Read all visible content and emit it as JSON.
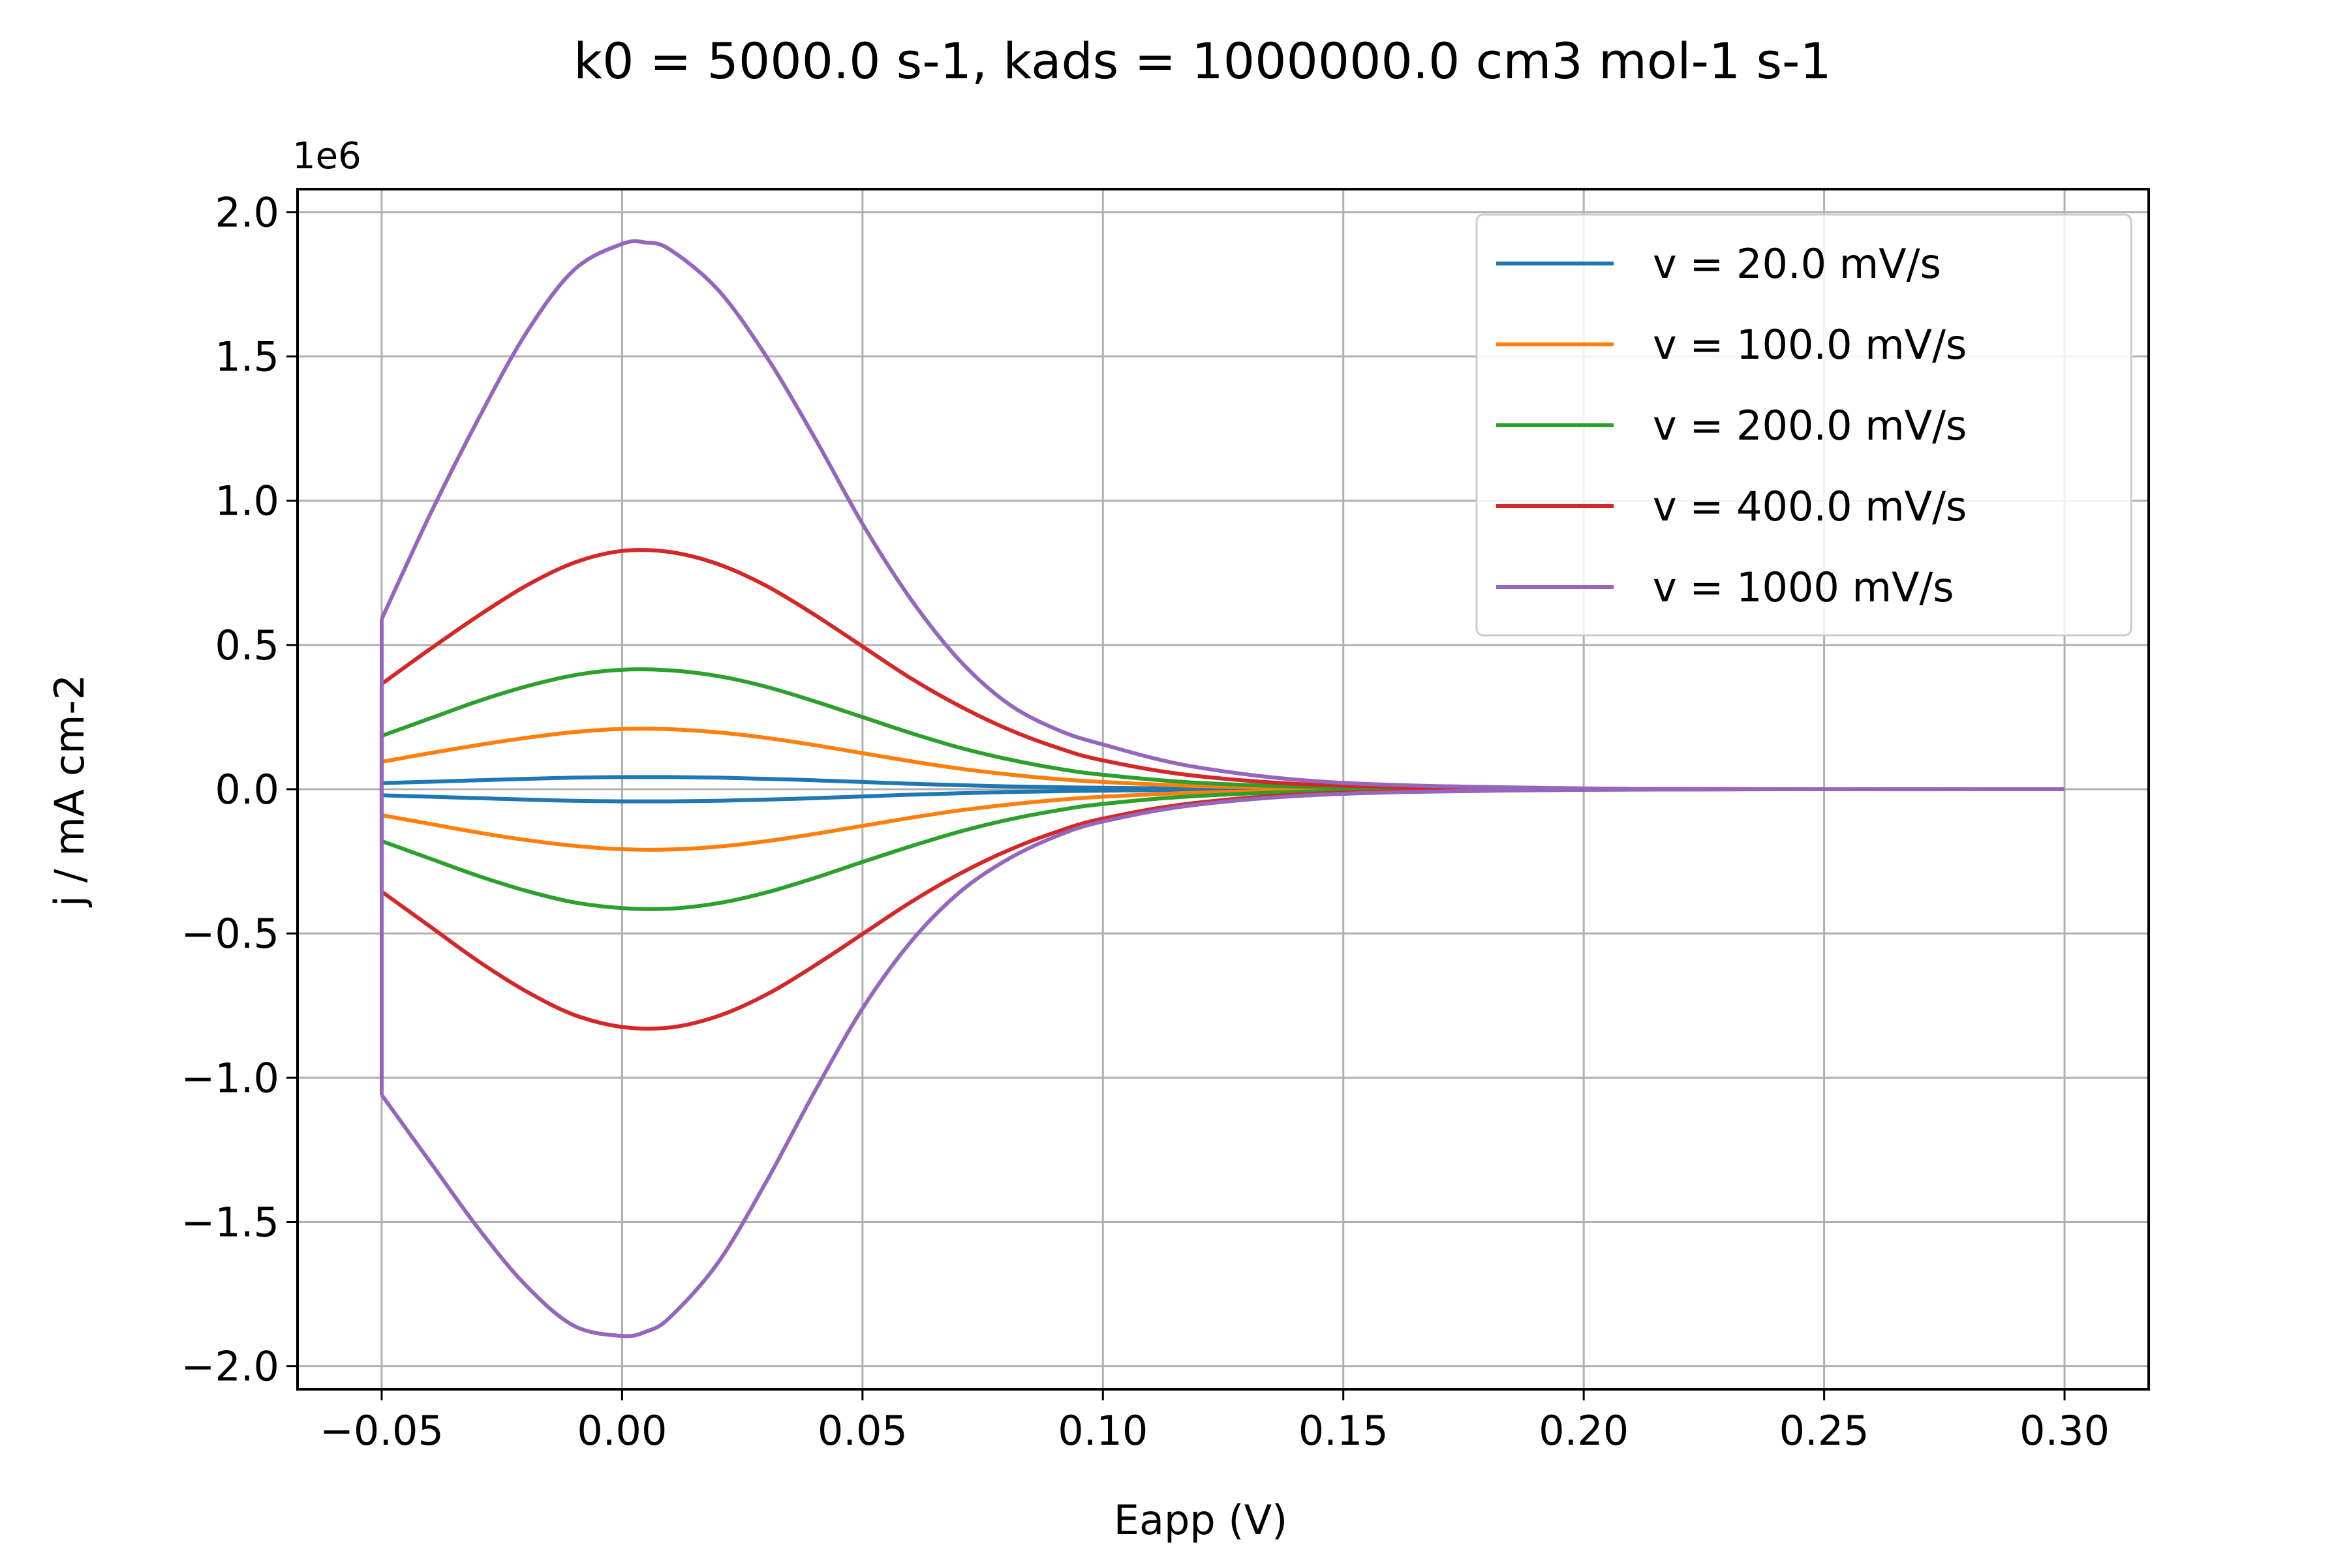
{
  "chart_data": {
    "type": "line",
    "title": "k0 = 5000.0 s-1, kads = 1000000.0 cm3 mol-1 s-1",
    "xlabel": "Eapp (V)",
    "ylabel": "j / mA cm-2",
    "offset_label": "1e6",
    "xlim": [
      -0.0675,
      0.3175
    ],
    "ylim": [
      -2.08,
      2.08
    ],
    "xticks": [
      -0.05,
      0.0,
      0.05,
      0.1,
      0.15,
      0.2,
      0.25,
      0.3
    ],
    "xtick_labels": [
      "−0.05",
      "0.00",
      "0.05",
      "0.10",
      "0.15",
      "0.20",
      "0.25",
      "0.30"
    ],
    "yticks": [
      -2.0,
      -1.5,
      -1.0,
      -0.5,
      0.0,
      0.5,
      1.0,
      1.5,
      2.0
    ],
    "ytick_labels": [
      "−2.0",
      "−1.5",
      "−1.0",
      "−0.5",
      "0.0",
      "0.5",
      "1.0",
      "1.5",
      "2.0"
    ],
    "grid": true,
    "legend_position": "top-right",
    "series": [
      {
        "name": "v = 20.0 mV/s",
        "color": "#1f77b4",
        "x": [
          -0.05,
          -0.04,
          -0.03,
          -0.02,
          -0.01,
          0.0,
          0.01,
          0.02,
          0.03,
          0.04,
          0.05,
          0.06,
          0.07,
          0.08,
          0.09,
          0.1,
          0.12,
          0.15,
          0.2,
          0.25,
          0.3
        ],
        "forward": [
          0.021,
          0.026,
          0.031,
          0.036,
          0.04,
          0.042,
          0.042,
          0.04,
          0.036,
          0.031,
          0.025,
          0.019,
          0.014,
          0.01,
          0.007,
          0.005,
          0.002,
          0.0006,
          0.0001,
          0.0,
          0.0
        ],
        "backward": [
          -0.021,
          -0.026,
          -0.031,
          -0.036,
          -0.04,
          -0.042,
          -0.042,
          -0.04,
          -0.036,
          -0.031,
          -0.025,
          -0.019,
          -0.014,
          -0.01,
          -0.007,
          -0.005,
          -0.002,
          -0.0006,
          -0.0001,
          0.0,
          0.0
        ]
      },
      {
        "name": "v = 100.0 mV/s",
        "color": "#ff7f0e",
        "x": [
          -0.05,
          -0.04,
          -0.03,
          -0.02,
          -0.01,
          0.0,
          0.01,
          0.02,
          0.03,
          0.04,
          0.05,
          0.06,
          0.07,
          0.08,
          0.09,
          0.1,
          0.12,
          0.15,
          0.2,
          0.25,
          0.3
        ],
        "forward": [
          0.095,
          0.125,
          0.153,
          0.178,
          0.198,
          0.209,
          0.208,
          0.197,
          0.178,
          0.153,
          0.125,
          0.097,
          0.072,
          0.052,
          0.036,
          0.025,
          0.011,
          0.003,
          0.0004,
          0.0,
          0.0
        ],
        "backward": [
          -0.09,
          -0.12,
          -0.15,
          -0.176,
          -0.196,
          -0.208,
          -0.209,
          -0.199,
          -0.18,
          -0.155,
          -0.127,
          -0.099,
          -0.074,
          -0.054,
          -0.038,
          -0.026,
          -0.012,
          -0.003,
          -0.0004,
          0.0,
          0.0
        ]
      },
      {
        "name": "v = 200.0 mV/s",
        "color": "#2ca02c",
        "x": [
          -0.05,
          -0.04,
          -0.03,
          -0.02,
          -0.01,
          0.0,
          0.01,
          0.02,
          0.03,
          0.04,
          0.05,
          0.06,
          0.07,
          0.08,
          0.09,
          0.1,
          0.12,
          0.15,
          0.2,
          0.25,
          0.3
        ],
        "forward": [
          0.185,
          0.245,
          0.305,
          0.356,
          0.395,
          0.414,
          0.412,
          0.392,
          0.355,
          0.305,
          0.25,
          0.195,
          0.145,
          0.105,
          0.073,
          0.05,
          0.022,
          0.006,
          0.0008,
          0.0,
          0.0
        ],
        "backward": [
          -0.18,
          -0.24,
          -0.3,
          -0.352,
          -0.392,
          -0.412,
          -0.414,
          -0.395,
          -0.358,
          -0.308,
          -0.252,
          -0.198,
          -0.148,
          -0.107,
          -0.075,
          -0.051,
          -0.023,
          -0.006,
          -0.0008,
          0.0,
          0.0
        ]
      },
      {
        "name": "v = 400.0 mV/s",
        "color": "#d62728",
        "x": [
          -0.05,
          -0.04,
          -0.03,
          -0.02,
          -0.01,
          0.0,
          0.01,
          0.02,
          0.03,
          0.04,
          0.05,
          0.06,
          0.07,
          0.08,
          0.09,
          0.1,
          0.12,
          0.15,
          0.2,
          0.25,
          0.3
        ],
        "forward": [
          0.365,
          0.485,
          0.6,
          0.705,
          0.785,
          0.826,
          0.822,
          0.78,
          0.705,
          0.605,
          0.495,
          0.385,
          0.29,
          0.21,
          0.147,
          0.1,
          0.045,
          0.012,
          0.0015,
          0.0,
          0.0
        ],
        "backward": [
          -0.355,
          -0.475,
          -0.595,
          -0.7,
          -0.782,
          -0.824,
          -0.826,
          -0.786,
          -0.712,
          -0.612,
          -0.502,
          -0.392,
          -0.295,
          -0.214,
          -0.15,
          -0.102,
          -0.046,
          -0.012,
          -0.0015,
          0.0,
          0.0
        ]
      },
      {
        "name": "v = 1000 mV/s",
        "color": "#9467bd",
        "x": [
          -0.05,
          -0.04,
          -0.03,
          -0.02,
          -0.01,
          0.0,
          0.005,
          0.01,
          0.02,
          0.03,
          0.04,
          0.05,
          0.06,
          0.07,
          0.08,
          0.09,
          0.1,
          0.12,
          0.15,
          0.2,
          0.25,
          0.3
        ],
        "forward": [
          0.59,
          0.95,
          1.28,
          1.58,
          1.8,
          1.89,
          1.895,
          1.87,
          1.73,
          1.5,
          1.22,
          0.92,
          0.66,
          0.45,
          0.3,
          0.21,
          0.155,
          0.075,
          0.022,
          0.003,
          0.0,
          0.0
        ],
        "backward": [
          -1.06,
          -1.29,
          -1.52,
          -1.72,
          -1.86,
          -1.895,
          -1.88,
          -1.83,
          -1.64,
          -1.36,
          -1.05,
          -0.76,
          -0.53,
          -0.36,
          -0.245,
          -0.165,
          -0.112,
          -0.053,
          -0.016,
          -0.002,
          0.0,
          0.0
        ],
        "vertex_segment": [
          0.59,
          -1.06
        ]
      }
    ]
  }
}
